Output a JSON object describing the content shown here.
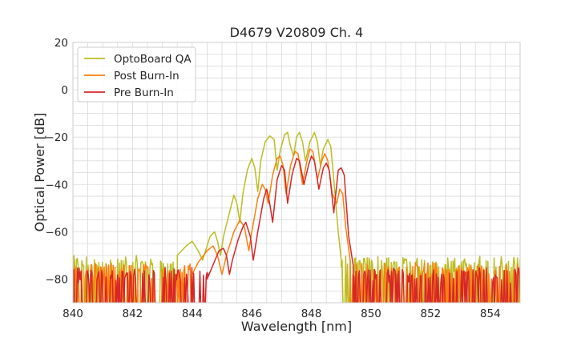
{
  "chart_data": {
    "type": "line",
    "title": "D4679 V20809 Ch. 4",
    "xlabel": "Wavelength [nm]",
    "ylabel": "Optical Power [dB]",
    "xlim": [
      840,
      855
    ],
    "ylim": [
      -90,
      20
    ],
    "xticks": [
      840,
      842,
      844,
      846,
      848,
      850,
      852,
      854
    ],
    "yticks": [
      20,
      0,
      -20,
      -40,
      -60,
      -80
    ],
    "grid": true,
    "legend_placement": "top-left",
    "series": [
      {
        "name": "OptoBoard QA",
        "color": "#bcbd22",
        "noise_floor": -75,
        "points": [
          [
            843.5,
            -70
          ],
          [
            843.8,
            -66
          ],
          [
            844.0,
            -64
          ],
          [
            844.2,
            -68
          ],
          [
            844.35,
            -72
          ],
          [
            844.45,
            -68
          ],
          [
            844.6,
            -62
          ],
          [
            844.75,
            -60
          ],
          [
            844.85,
            -64
          ],
          [
            844.95,
            -70
          ],
          [
            845.05,
            -62
          ],
          [
            845.25,
            -52
          ],
          [
            845.4,
            -44.5
          ],
          [
            845.5,
            -48
          ],
          [
            845.6,
            -56
          ],
          [
            845.7,
            -44
          ],
          [
            845.85,
            -34
          ],
          [
            846.0,
            -29
          ],
          [
            846.1,
            -33
          ],
          [
            846.2,
            -43
          ],
          [
            846.3,
            -30
          ],
          [
            846.45,
            -22
          ],
          [
            846.6,
            -19.5
          ],
          [
            846.75,
            -21
          ],
          [
            846.85,
            -34
          ],
          [
            846.95,
            -26
          ],
          [
            847.1,
            -19
          ],
          [
            847.2,
            -18
          ],
          [
            847.3,
            -24
          ],
          [
            847.4,
            -28
          ],
          [
            847.5,
            -20
          ],
          [
            847.6,
            -18
          ],
          [
            847.7,
            -22
          ],
          [
            847.8,
            -30
          ],
          [
            847.95,
            -22
          ],
          [
            848.1,
            -18
          ],
          [
            848.2,
            -22
          ],
          [
            848.3,
            -32
          ],
          [
            848.4,
            -25
          ],
          [
            848.55,
            -21
          ],
          [
            848.65,
            -24
          ],
          [
            848.75,
            -38
          ],
          [
            848.9,
            -60
          ],
          [
            849.0,
            -72
          ]
        ]
      },
      {
        "name": "Post Burn-In",
        "color": "#ff7f0e",
        "noise_floor": -78,
        "points": [
          [
            844.0,
            -78
          ],
          [
            844.2,
            -73
          ],
          [
            844.5,
            -68
          ],
          [
            844.7,
            -66
          ],
          [
            844.85,
            -70
          ],
          [
            845.0,
            -78
          ],
          [
            845.15,
            -70
          ],
          [
            845.4,
            -60
          ],
          [
            845.6,
            -55
          ],
          [
            845.75,
            -58
          ],
          [
            845.9,
            -68
          ],
          [
            846.0,
            -60
          ],
          [
            846.2,
            -46
          ],
          [
            846.35,
            -40
          ],
          [
            846.45,
            -42
          ],
          [
            846.55,
            -48
          ],
          [
            846.7,
            -36
          ],
          [
            846.85,
            -29
          ],
          [
            846.95,
            -28
          ],
          [
            847.05,
            -32
          ],
          [
            847.15,
            -44
          ],
          [
            847.3,
            -32
          ],
          [
            847.45,
            -26
          ],
          [
            847.55,
            -27
          ],
          [
            847.7,
            -40
          ],
          [
            847.85,
            -30
          ],
          [
            847.95,
            -25
          ],
          [
            848.05,
            -26
          ],
          [
            848.2,
            -38
          ],
          [
            848.35,
            -30
          ],
          [
            848.45,
            -27
          ],
          [
            848.55,
            -30
          ],
          [
            848.7,
            -44
          ],
          [
            848.85,
            -48
          ],
          [
            848.95,
            -42
          ],
          [
            849.05,
            -44
          ],
          [
            849.15,
            -58
          ],
          [
            849.3,
            -72
          ]
        ]
      },
      {
        "name": "Pre Burn-In",
        "color": "#d62728",
        "noise_floor": -80,
        "points": [
          [
            844.5,
            -80
          ],
          [
            844.7,
            -74
          ],
          [
            844.9,
            -68
          ],
          [
            845.05,
            -67
          ],
          [
            845.15,
            -70
          ],
          [
            845.25,
            -78
          ],
          [
            845.35,
            -72
          ],
          [
            845.55,
            -63
          ],
          [
            845.7,
            -58
          ],
          [
            845.8,
            -56
          ],
          [
            845.95,
            -62
          ],
          [
            846.05,
            -72
          ],
          [
            846.2,
            -60
          ],
          [
            846.4,
            -46
          ],
          [
            846.5,
            -42
          ],
          [
            846.6,
            -48
          ],
          [
            846.7,
            -56
          ],
          [
            846.85,
            -38
          ],
          [
            847.0,
            -32
          ],
          [
            847.1,
            -34
          ],
          [
            847.2,
            -48
          ],
          [
            847.35,
            -36
          ],
          [
            847.5,
            -29
          ],
          [
            847.6,
            -30
          ],
          [
            847.75,
            -40
          ],
          [
            847.9,
            -32
          ],
          [
            848.0,
            -28
          ],
          [
            848.1,
            -30
          ],
          [
            848.25,
            -42
          ],
          [
            848.4,
            -33
          ],
          [
            848.5,
            -31
          ],
          [
            848.6,
            -34
          ],
          [
            848.75,
            -52
          ],
          [
            848.9,
            -34
          ],
          [
            849.0,
            -33
          ],
          [
            849.1,
            -36
          ],
          [
            849.25,
            -62
          ],
          [
            849.4,
            -74
          ]
        ]
      }
    ]
  }
}
